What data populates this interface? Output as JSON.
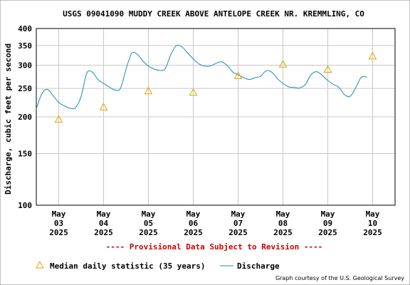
{
  "chart_data": {
    "type": "line",
    "title": "USGS 09041090 MUDDY CREEK ABOVE ANTELOPE CREEK NR. KREMMLING, CO",
    "ylabel": "Discharge, cubic feet per second",
    "y_scale": "log",
    "ylim": [
      100,
      400
    ],
    "xlim": [
      "2025-05-02T12:00",
      "2025-05-10T12:00"
    ],
    "yticks": [
      100,
      150,
      200,
      250,
      300,
      350,
      400
    ],
    "xticks": [
      {
        "x": "2025-05-03",
        "month": "May",
        "day": "03",
        "year": "2025"
      },
      {
        "x": "2025-05-04",
        "month": "May",
        "day": "04",
        "year": "2025"
      },
      {
        "x": "2025-05-05",
        "month": "May",
        "day": "05",
        "year": "2025"
      },
      {
        "x": "2025-05-06",
        "month": "May",
        "day": "06",
        "year": "2025"
      },
      {
        "x": "2025-05-07",
        "month": "May",
        "day": "07",
        "year": "2025"
      },
      {
        "x": "2025-05-08",
        "month": "May",
        "day": "08",
        "year": "2025"
      },
      {
        "x": "2025-05-09",
        "month": "May",
        "day": "09",
        "year": "2025"
      },
      {
        "x": "2025-05-10",
        "month": "May",
        "day": "10",
        "year": "2025"
      }
    ],
    "grid": true,
    "series": [
      {
        "name": "Discharge",
        "color": "#1a8ab8",
        "x": [
          "2025-05-02T12:00",
          "2025-05-02T15:00",
          "2025-05-02T18:00",
          "2025-05-02T21:00",
          "2025-05-03T00:00",
          "2025-05-03T03:00",
          "2025-05-03T06:00",
          "2025-05-03T09:00",
          "2025-05-03T12:00",
          "2025-05-03T15:00",
          "2025-05-03T18:00",
          "2025-05-03T21:00",
          "2025-05-04T00:00",
          "2025-05-04T03:00",
          "2025-05-04T06:00",
          "2025-05-04T09:00",
          "2025-05-04T12:00",
          "2025-05-04T15:00",
          "2025-05-04T18:00",
          "2025-05-04T21:00",
          "2025-05-05T00:00",
          "2025-05-05T03:00",
          "2025-05-05T06:00",
          "2025-05-05T09:00",
          "2025-05-05T12:00",
          "2025-05-05T15:00",
          "2025-05-05T18:00",
          "2025-05-05T21:00",
          "2025-05-06T00:00",
          "2025-05-06T03:00",
          "2025-05-06T06:00",
          "2025-05-06T09:00",
          "2025-05-06T12:00",
          "2025-05-06T15:00",
          "2025-05-06T18:00",
          "2025-05-06T21:00",
          "2025-05-07T00:00",
          "2025-05-07T03:00",
          "2025-05-07T06:00",
          "2025-05-07T09:00",
          "2025-05-07T12:00",
          "2025-05-07T15:00",
          "2025-05-07T18:00",
          "2025-05-07T21:00",
          "2025-05-08T00:00",
          "2025-05-08T03:00",
          "2025-05-08T06:00",
          "2025-05-08T09:00",
          "2025-05-08T12:00",
          "2025-05-08T15:00",
          "2025-05-08T18:00",
          "2025-05-08T21:00",
          "2025-05-09T00:00",
          "2025-05-09T03:00",
          "2025-05-09T06:00",
          "2025-05-09T09:00",
          "2025-05-09T12:00",
          "2025-05-09T15:00",
          "2025-05-09T18:00",
          "2025-05-09T21:00"
        ],
        "y": [
          213,
          240,
          248,
          236,
          224,
          218,
          214,
          215,
          235,
          282,
          284,
          268,
          260,
          253,
          247,
          250,
          290,
          329,
          327,
          310,
          298,
          291,
          288,
          292,
          326,
          350,
          346,
          330,
          315,
          303,
          298,
          298,
          304,
          308,
          300,
          285,
          278,
          272,
          268,
          272,
          275,
          287,
          284,
          270,
          260,
          253,
          252,
          251,
          258,
          278,
          285,
          277,
          266,
          258,
          252,
          238,
          235,
          252,
          273,
          273
        ]
      },
      {
        "name": "Median daily statistic (35 years)",
        "color": "#e8a000",
        "marker": "triangle",
        "x": [
          "2025-05-03T00:00",
          "2025-05-04T00:00",
          "2025-05-05T00:00",
          "2025-05-06T00:00",
          "2025-05-07T00:00",
          "2025-05-08T00:00",
          "2025-05-09T00:00",
          "2025-05-10T00:00"
        ],
        "y": [
          196,
          216,
          245,
          242,
          276,
          302,
          290,
          322
        ]
      }
    ],
    "legend": {
      "placement": "bottom-left",
      "entries": [
        "Median daily statistic (35 years)",
        "Discharge"
      ]
    },
    "annotation": "---- Provisional Data Subject to Revision ----",
    "annotation_color": "#cc0000",
    "credit": "Graph courtesy of the U.S. Geological Survey"
  }
}
